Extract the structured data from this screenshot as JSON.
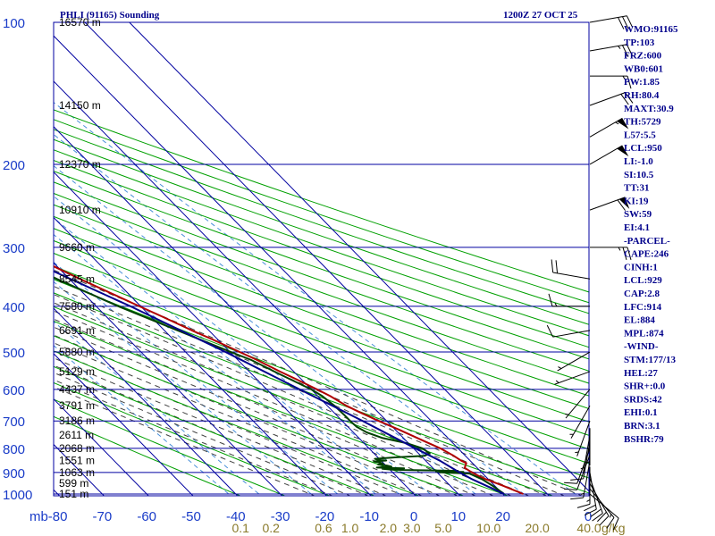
{
  "chart_data": {
    "type": "line",
    "subtype": "skew-t log-p sounding",
    "title": "PHLI (91165) Sounding",
    "time_label": "1200Z 27 OCT 25",
    "pressure_axis_unit": "mb",
    "pressure_ticks": [
      "100",
      "200",
      "300",
      "400",
      "500",
      "600",
      "700",
      "800",
      "900",
      "1000"
    ],
    "temperature_ticks": [
      "-80",
      "-70",
      "-60",
      "-50",
      "-40",
      "-30",
      "-20",
      "-10",
      "0",
      "10",
      "20"
    ],
    "zero_label": "0",
    "mixing_ratio_ticks": [
      "0.1",
      "0.2",
      "0.6",
      "1.0",
      "2.0",
      "3.0",
      "5.0",
      "10.0",
      "20.0",
      "40.0"
    ],
    "mixing_ratio_unit": "g/kg",
    "height_labels": [
      {
        "p": 1000,
        "label": "151 m"
      },
      {
        "p": 950,
        "label": "599 m"
      },
      {
        "p": 900,
        "label": "1063 m"
      },
      {
        "p": 850,
        "label": "1551 m"
      },
      {
        "p": 800,
        "label": "2068 m"
      },
      {
        "p": 750,
        "label": "2611 m"
      },
      {
        "p": 700,
        "label": "3186 m"
      },
      {
        "p": 650,
        "label": "3791 m"
      },
      {
        "p": 600,
        "label": "4437 m"
      },
      {
        "p": 550,
        "label": "5129 m"
      },
      {
        "p": 500,
        "label": "5880 m"
      },
      {
        "p": 450,
        "label": "6691 m"
      },
      {
        "p": 400,
        "label": "7580 m"
      },
      {
        "p": 350,
        "label": "8545 m"
      },
      {
        "p": 300,
        "label": "9660 m"
      },
      {
        "p": 250,
        "label": "10910 m"
      },
      {
        "p": 200,
        "label": "12370 m"
      },
      {
        "p": 150,
        "label": "14150 m"
      },
      {
        "p": 100,
        "label": "16570 m"
      }
    ],
    "series": [
      {
        "name": "Temperature",
        "color": "#b00000",
        "points": [
          [
            1000,
            24.6
          ],
          [
            960,
            21.8
          ],
          [
            925,
            19.0
          ],
          [
            900,
            17.8
          ],
          [
            880,
            17.2
          ],
          [
            860,
            18.6
          ],
          [
            850,
            18.0
          ],
          [
            830,
            17.4
          ],
          [
            800,
            16.0
          ],
          [
            770,
            13.8
          ],
          [
            730,
            10.8
          ],
          [
            700,
            8.2
          ],
          [
            670,
            5.8
          ],
          [
            650,
            4.3
          ],
          [
            620,
            2.8
          ],
          [
            600,
            1.3
          ],
          [
            570,
            -1.2
          ],
          [
            550,
            -3.1
          ],
          [
            520,
            -5.7
          ],
          [
            500,
            -7.8
          ],
          [
            470,
            -11.2
          ],
          [
            450,
            -13.8
          ],
          [
            420,
            -17.5
          ],
          [
            400,
            -20.3
          ],
          [
            350,
            -27.6
          ],
          [
            300,
            -35.5
          ],
          [
            280,
            -38.9
          ],
          [
            250,
            -44.3
          ],
          [
            220,
            -50.0
          ],
          [
            200,
            -54.7
          ],
          [
            180,
            -60.0
          ],
          [
            170,
            -63.5
          ],
          [
            160,
            -67.7
          ],
          [
            150,
            -71.5
          ],
          [
            140,
            -76.0
          ],
          [
            125,
            -80.5
          ],
          [
            110,
            -84.0
          ],
          [
            100,
            -87.5
          ]
        ]
      },
      {
        "name": "Dewpoint",
        "color": "#004000",
        "points": [
          [
            1000,
            20.3
          ],
          [
            960,
            19.5
          ],
          [
            930,
            18.6
          ],
          [
            905,
            17.0
          ],
          [
            900,
            10.8
          ],
          [
            898,
            16.0
          ],
          [
            896,
            10.0
          ],
          [
            893,
            15.0
          ],
          [
            890,
            5.0
          ],
          [
            888,
            0.5
          ],
          [
            884,
            -1.5
          ],
          [
            882,
            3.5
          ],
          [
            879,
            -2.5
          ],
          [
            875,
            1.0
          ],
          [
            870,
            0.2
          ],
          [
            866,
            -1.5
          ],
          [
            862,
            -0.2
          ],
          [
            857,
            -0.8
          ],
          [
            853,
            -1.8
          ],
          [
            849,
            1.2
          ],
          [
            846,
            -0.5
          ],
          [
            842,
            -1.0
          ],
          [
            836,
            4.2
          ],
          [
            830,
            10.8
          ],
          [
            820,
            12.5
          ],
          [
            800,
            12.0
          ],
          [
            780,
            9.5
          ],
          [
            760,
            5.2
          ],
          [
            740,
            3.0
          ],
          [
            720,
            2.0
          ],
          [
            700,
            1.8
          ],
          [
            680,
            1.8
          ],
          [
            650,
            1.6
          ],
          [
            620,
            1.0
          ],
          [
            600,
            0.0
          ],
          [
            560,
            -3.5
          ],
          [
            520,
            -7.0
          ],
          [
            500,
            -9.8
          ],
          [
            450,
            -17.0
          ],
          [
            400,
            -25.0
          ],
          [
            350,
            -32.8
          ],
          [
            300,
            -40.5
          ],
          [
            280,
            -45.0
          ],
          [
            260,
            -52.0
          ],
          [
            250,
            -58.0
          ],
          [
            200,
            -70.0
          ],
          [
            150,
            -80.0
          ]
        ]
      },
      {
        "name": "Parcel",
        "color": "#00008c",
        "points": [
          [
            1000,
            20.3
          ],
          [
            950,
            17.5
          ],
          [
            929,
            16.3
          ],
          [
            900,
            15.0
          ],
          [
            850,
            13.2
          ],
          [
            800,
            10.4
          ],
          [
            700,
            4.6
          ],
          [
            600,
            -2.6
          ],
          [
            500,
            -11.0
          ],
          [
            400,
            -22.3
          ],
          [
            300,
            -38.4
          ],
          [
            250,
            -49.2
          ],
          [
            200,
            -62.0
          ],
          [
            150,
            -79.0
          ]
        ]
      }
    ],
    "wind_barbs": [
      {
        "p": 1000,
        "dir": 130,
        "spd": 10
      },
      {
        "p": 975,
        "dir": 140,
        "spd": 15
      },
      {
        "p": 950,
        "dir": 150,
        "spd": 20
      },
      {
        "p": 925,
        "dir": 160,
        "spd": 20
      },
      {
        "p": 900,
        "dir": 170,
        "spd": 20
      },
      {
        "p": 875,
        "dir": 180,
        "spd": 15
      },
      {
        "p": 850,
        "dir": 190,
        "spd": 15
      },
      {
        "p": 825,
        "dir": 200,
        "spd": 10
      },
      {
        "p": 800,
        "dir": 200,
        "spd": 10
      },
      {
        "p": 775,
        "dir": 190,
        "spd": 10
      },
      {
        "p": 750,
        "dir": 190,
        "spd": 5
      },
      {
        "p": 725,
        "dir": 180,
        "spd": 5
      },
      {
        "p": 700,
        "dir": 200,
        "spd": 5
      },
      {
        "p": 650,
        "dir": 210,
        "spd": 5
      },
      {
        "p": 600,
        "dir": 220,
        "spd": 5
      },
      {
        "p": 550,
        "dir": 250,
        "spd": 5
      },
      {
        "p": 500,
        "dir": 240,
        "spd": 5
      },
      {
        "p": 450,
        "dir": 260,
        "spd": 10
      },
      {
        "p": 400,
        "dir": 270,
        "spd": 15
      },
      {
        "p": 350,
        "dir": 280,
        "spd": 20
      },
      {
        "p": 300,
        "dir": 90,
        "spd": 25
      },
      {
        "p": 250,
        "dir": 70,
        "spd": 60
      },
      {
        "p": 200,
        "dir": 60,
        "spd": 50
      },
      {
        "p": 175,
        "dir": 60,
        "spd": 55
      },
      {
        "p": 150,
        "dir": 70,
        "spd": 20
      },
      {
        "p": 130,
        "dir": 90,
        "spd": 15
      },
      {
        "p": 115,
        "dir": 80,
        "spd": 25
      },
      {
        "p": 100,
        "dir": 80,
        "spd": 30
      }
    ],
    "indices": [
      "WMO:91165",
      "TP:103",
      "FRZ:600",
      "WB0:601",
      "PW:1.85",
      "RH:80.4",
      "MAXT:30.9",
      "TH:5729",
      "L57:5.5",
      "LCL:950",
      "LI:-1.0",
      "SI:10.5",
      "TT:31",
      "KI:19",
      "SW:59",
      "EI:4.1",
      "-PARCEL-",
      "CAPE:246",
      "CINH:1",
      "LCL:929",
      "CAP:2.8",
      "LFC:914",
      "EL:884",
      "MPL:874",
      "-WIND-",
      "STM:177/13",
      "HEL:27",
      "SHR+:0.0",
      "SRDS:42",
      "EHI:0.1",
      "BRN:3.1",
      "BSHR:79"
    ],
    "colors": {
      "isobar": "#0000a0",
      "isotherm": "#0000a0",
      "dry_adiabat": "#00a000",
      "moist_adiabat": "#404040",
      "mixing_ratio": "#4a90d9",
      "temperature": "#b00000",
      "dewpoint": "#004000",
      "parcel": "#00008c",
      "text": "#00008b",
      "mixing_ratio_text": "#8a7a2a"
    }
  }
}
